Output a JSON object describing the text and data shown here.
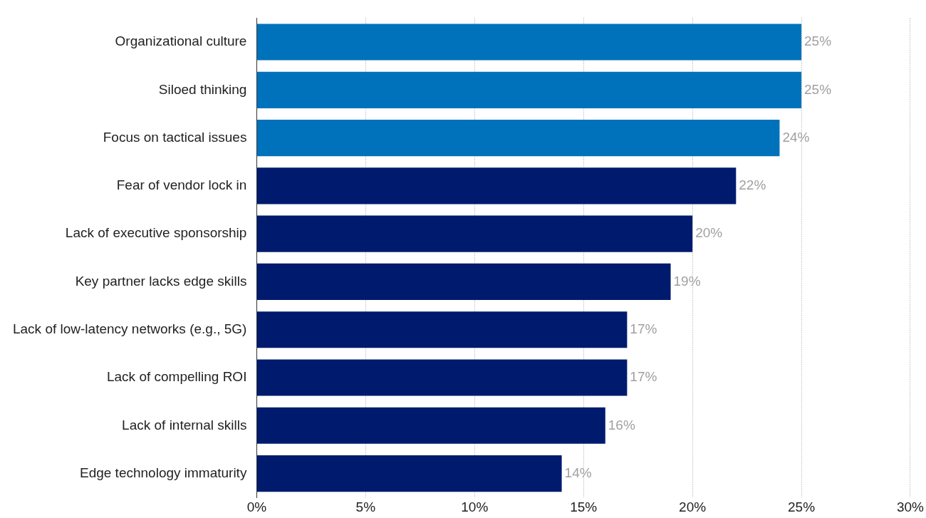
{
  "chart_data": {
    "type": "bar",
    "orientation": "horizontal",
    "categories": [
      "Organizational culture",
      "Siloed thinking",
      "Focus on tactical issues",
      "Fear of vendor lock in",
      "Lack of executive sponsorship",
      "Key partner lacks edge skills",
      "Lack of low-latency networks (e.g., 5G)",
      "Lack of compelling ROI",
      "Lack of internal skills",
      "Edge technology immaturity"
    ],
    "values": [
      25,
      25,
      24,
      22,
      20,
      19,
      17,
      17,
      16,
      14
    ],
    "colors": [
      "#0072bc",
      "#0072bc",
      "#0072bc",
      "#001a6e",
      "#001a6e",
      "#001a6e",
      "#001a6e",
      "#001a6e",
      "#001a6e",
      "#001a6e"
    ],
    "value_labels": [
      "25%",
      "25%",
      "24%",
      "22%",
      "20%",
      "19%",
      "17%",
      "17%",
      "16%",
      "14%"
    ],
    "xlim": [
      0,
      30
    ],
    "xticks": [
      {
        "value": 0,
        "label": "0%"
      },
      {
        "value": 5,
        "label": "5%"
      },
      {
        "value": 10,
        "label": "10%"
      },
      {
        "value": 15,
        "label": "15%"
      },
      {
        "value": 20,
        "label": "20%"
      },
      {
        "value": 25,
        "label": "25%"
      },
      {
        "value": 30,
        "label": "30%"
      }
    ],
    "grid": "x",
    "legend": false
  }
}
